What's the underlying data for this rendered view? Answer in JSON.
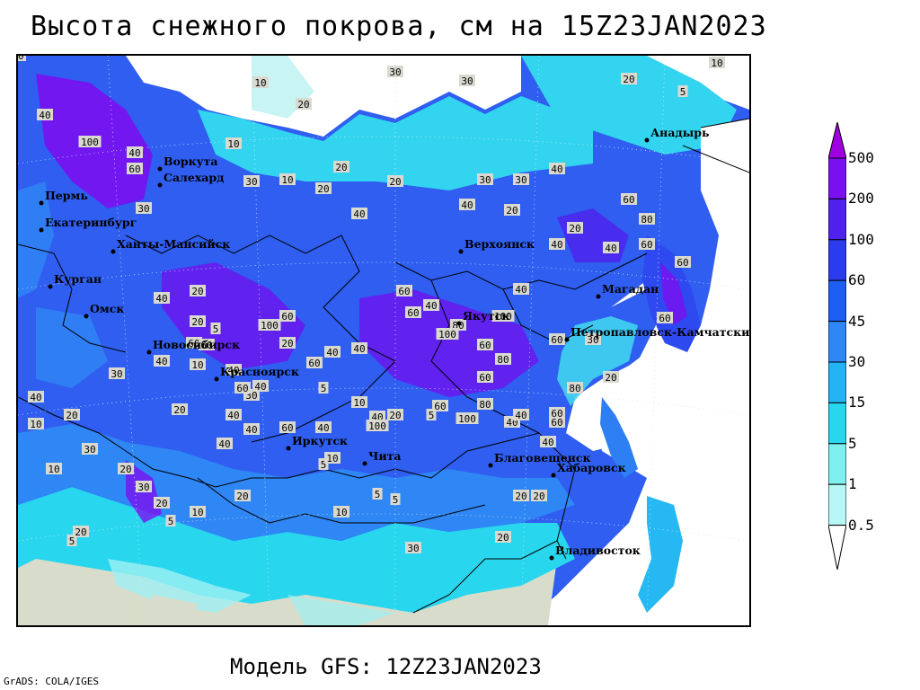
{
  "title": "Высота снежного покрова, см на 15Z23JAN2023",
  "subtitle": "Модель GFS: 12Z23JAN2023",
  "credit": "GrADS: COLA/IGES",
  "legend": {
    "levels": [
      "500",
      "200",
      "100",
      "60",
      "45",
      "30",
      "15",
      "5",
      "1",
      "0.5"
    ],
    "colors": [
      "#a000e0",
      "#7a10f0",
      "#5020ee",
      "#2b3cf0",
      "#1f5ef2",
      "#2f86f5",
      "#24b4f3",
      "#28d6ee",
      "#7ff0f0",
      "#b8f7f7",
      "#ffffff"
    ]
  },
  "map_colors": {
    "no_snow": "#d8dccb",
    "ocean": "#ffffff",
    "deep": "#1f6ff0"
  },
  "cities": [
    {
      "name": "Анадырь"
    },
    {
      "name": "Воркута"
    },
    {
      "name": "Салехард"
    },
    {
      "name": "Пермь"
    },
    {
      "name": "Екатеринбург"
    },
    {
      "name": "Ханты-Мансийск"
    },
    {
      "name": "Курган"
    },
    {
      "name": "Омск"
    },
    {
      "name": "Новосибирск"
    },
    {
      "name": "Красноярск"
    },
    {
      "name": "Верхоянск"
    },
    {
      "name": "Якутск"
    },
    {
      "name": "Магадан"
    },
    {
      "name": "Петропавловск-Камчатский"
    },
    {
      "name": "Иркутск"
    },
    {
      "name": "Чита"
    },
    {
      "name": "Благовещенск"
    },
    {
      "name": "Хабаровск"
    },
    {
      "name": "Владивосток"
    }
  ],
  "contour_labels": [
    "10",
    "20",
    "30",
    "30",
    "20",
    "10",
    "5",
    "40",
    "100",
    "40",
    "60",
    "30",
    "40",
    "20",
    "20",
    "60",
    "40",
    "60",
    "80",
    "100",
    "60",
    "100",
    "80",
    "60",
    "40",
    "40",
    "60",
    "80",
    "60",
    "30",
    "40",
    "30",
    "20",
    "10",
    "30",
    "10",
    "20",
    "20",
    "40",
    "40",
    "20",
    "20",
    "40",
    "60",
    "60",
    "10",
    "5",
    "20",
    "5",
    "10",
    "20",
    "5",
    "10",
    "10",
    "5",
    "5",
    "30",
    "20",
    "20",
    "20",
    "40",
    "40",
    "60",
    "40",
    "40",
    "30",
    "40",
    "100",
    "60",
    "20",
    "60",
    "40",
    "40",
    "40",
    "20",
    "5",
    "5",
    "10",
    "5",
    "10",
    "20",
    "40",
    "40",
    "60",
    "60",
    "60",
    "40",
    "60",
    "40",
    "100",
    "60",
    "80",
    "100",
    "40",
    "60",
    "80",
    "60",
    "30",
    "20",
    "20",
    "30",
    "20",
    "30",
    "20",
    "10",
    "40",
    "30",
    "20",
    "20"
  ]
}
